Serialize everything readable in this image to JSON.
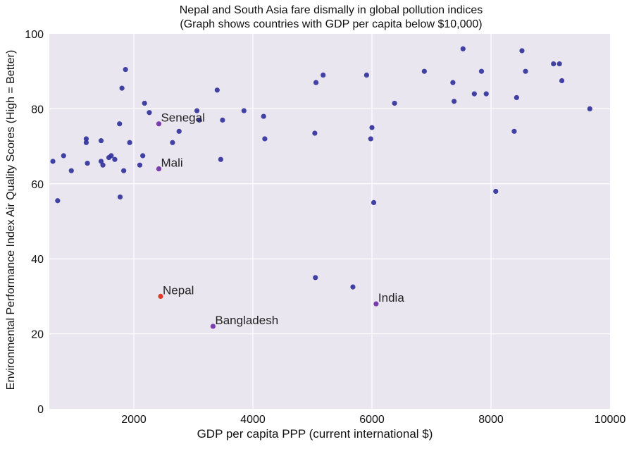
{
  "chart_data": {
    "type": "scatter",
    "title_line1": "Nepal and South Asia fare dismally in global pollution indices",
    "title_line2": "(Graph shows countries with GDP per capita below $10,000)",
    "xlabel": "GDP per capita PPP (current international $)",
    "ylabel": "Environmental Performance Index Air Quality Scores (High = Better)",
    "xlim": [
      580,
      10000
    ],
    "ylim": [
      0,
      100
    ],
    "xticks": [
      2000,
      4000,
      6000,
      8000,
      10000
    ],
    "yticks": [
      0,
      20,
      40,
      60,
      80,
      100
    ],
    "grid": true,
    "colors": {
      "background": "#e9e6f0",
      "grid": "#ffffff",
      "point": "#2f2f9a",
      "highlight_south_asia": "#7a3db0",
      "highlight_nepal": "#e03a2a",
      "label": "#222222"
    },
    "points": [
      {
        "x": 640,
        "y": 66
      },
      {
        "x": 720,
        "y": 55.5
      },
      {
        "x": 820,
        "y": 67.5
      },
      {
        "x": 950,
        "y": 63.5
      },
      {
        "x": 1200,
        "y": 72
      },
      {
        "x": 1200,
        "y": 71
      },
      {
        "x": 1220,
        "y": 65.5
      },
      {
        "x": 1450,
        "y": 71.5
      },
      {
        "x": 1450,
        "y": 66
      },
      {
        "x": 1480,
        "y": 65
      },
      {
        "x": 1580,
        "y": 67
      },
      {
        "x": 1620,
        "y": 67.5
      },
      {
        "x": 1680,
        "y": 66.5
      },
      {
        "x": 1760,
        "y": 76
      },
      {
        "x": 1770,
        "y": 56.5
      },
      {
        "x": 1800,
        "y": 85.5
      },
      {
        "x": 1830,
        "y": 63.5
      },
      {
        "x": 1860,
        "y": 90.5
      },
      {
        "x": 1930,
        "y": 71
      },
      {
        "x": 2100,
        "y": 65
      },
      {
        "x": 2150,
        "y": 67.5
      },
      {
        "x": 2180,
        "y": 81.5
      },
      {
        "x": 2260,
        "y": 79
      },
      {
        "x": 2650,
        "y": 71
      },
      {
        "x": 2760,
        "y": 74
      },
      {
        "x": 3060,
        "y": 79.5
      },
      {
        "x": 3100,
        "y": 77
      },
      {
        "x": 3400,
        "y": 85
      },
      {
        "x": 3460,
        "y": 66.5
      },
      {
        "x": 3490,
        "y": 77
      },
      {
        "x": 3850,
        "y": 79.5
      },
      {
        "x": 4180,
        "y": 78
      },
      {
        "x": 4200,
        "y": 72
      },
      {
        "x": 5040,
        "y": 73.5
      },
      {
        "x": 5060,
        "y": 87
      },
      {
        "x": 5050,
        "y": 35
      },
      {
        "x": 5180,
        "y": 89
      },
      {
        "x": 5680,
        "y": 32.5
      },
      {
        "x": 5910,
        "y": 89
      },
      {
        "x": 5980,
        "y": 72
      },
      {
        "x": 6000,
        "y": 75
      },
      {
        "x": 6030,
        "y": 55
      },
      {
        "x": 6380,
        "y": 81.5
      },
      {
        "x": 6880,
        "y": 90
      },
      {
        "x": 7360,
        "y": 87
      },
      {
        "x": 7380,
        "y": 82
      },
      {
        "x": 7530,
        "y": 96
      },
      {
        "x": 7720,
        "y": 84
      },
      {
        "x": 7840,
        "y": 90
      },
      {
        "x": 7920,
        "y": 84
      },
      {
        "x": 8080,
        "y": 58
      },
      {
        "x": 8390,
        "y": 74
      },
      {
        "x": 8430,
        "y": 83
      },
      {
        "x": 8520,
        "y": 95.5
      },
      {
        "x": 8580,
        "y": 90
      },
      {
        "x": 9050,
        "y": 92
      },
      {
        "x": 9150,
        "y": 92
      },
      {
        "x": 9190,
        "y": 87.5
      },
      {
        "x": 9660,
        "y": 80
      }
    ],
    "labeled_points": [
      {
        "label": "Senegal",
        "x": 2420,
        "y": 76,
        "kind": "south_asia_style"
      },
      {
        "label": "Mali",
        "x": 2420,
        "y": 64,
        "kind": "south_asia_style"
      },
      {
        "label": "Nepal",
        "x": 2450,
        "y": 30,
        "kind": "nepal"
      },
      {
        "label": "Bangladesh",
        "x": 3330,
        "y": 22,
        "kind": "south_asia_style"
      },
      {
        "label": "India",
        "x": 6070,
        "y": 28,
        "kind": "south_asia_style"
      }
    ]
  }
}
